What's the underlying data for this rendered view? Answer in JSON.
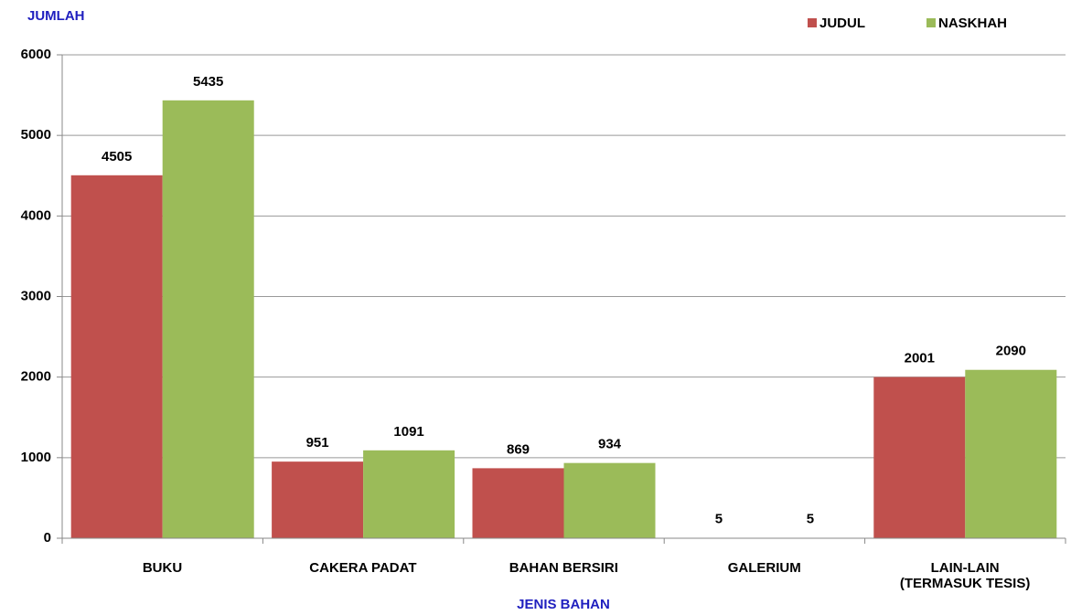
{
  "chart_data": {
    "type": "bar",
    "y_label": "JUMLAH",
    "x_label": "JENIS BAHAN",
    "categories": [
      "BUKU",
      "CAKERA PADAT",
      "BAHAN BERSIRI",
      "GALERIUM",
      "LAIN-LAIN\n(TERMASUK TESIS)"
    ],
    "series": [
      {
        "name": "JUDUL",
        "color": "#c0504d",
        "values": [
          4505,
          951,
          869,
          5,
          2001
        ]
      },
      {
        "name": "NASKHAH",
        "color": "#9bbb59",
        "values": [
          5435,
          1091,
          934,
          5,
          2090
        ]
      }
    ],
    "ylim": [
      0,
      6000
    ],
    "yticks": [
      0,
      1000,
      2000,
      3000,
      4000,
      5000,
      6000
    ],
    "grid": true,
    "legend": "top-right"
  }
}
